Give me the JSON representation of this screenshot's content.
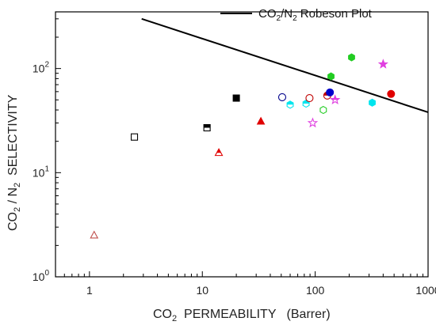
{
  "chart_data": {
    "type": "scatter",
    "x_scale": "log",
    "y_scale": "log",
    "xlim": [
      0.5,
      1000
    ],
    "ylim": [
      1,
      350
    ],
    "x_ticks": [
      {
        "value": 1,
        "label": "1"
      },
      {
        "value": 10,
        "label": "10"
      },
      {
        "value": 100,
        "label": "100"
      },
      {
        "value": 1000,
        "label": "1000"
      }
    ],
    "y_ticks": [
      {
        "value": 1,
        "base": "10",
        "exp": "0"
      },
      {
        "value": 10,
        "base": "10",
        "exp": "1"
      },
      {
        "value": 100,
        "base": "10",
        "exp": "2"
      }
    ],
    "xlabel": {
      "p1": "CO",
      "sub": "2",
      "p2": "  PERMEABILITY   (Barrer)"
    },
    "ylabel": {
      "p1": "CO",
      "sub1": "2",
      "p2": " / N",
      "sub2": "2",
      "p3": "  SELECTIVITY"
    },
    "legend": {
      "position": "top-right",
      "label": {
        "p1": "CO",
        "sub1": "2",
        "p2": "/N",
        "sub2": "2",
        "p3": " Robeson Plot"
      }
    },
    "line": {
      "name": "CO2/N2 Robeson Plot",
      "color": "#000000",
      "points": [
        [
          2.9,
          300
        ],
        [
          1000,
          38
        ]
      ]
    },
    "points": [
      {
        "x": 1.1,
        "y": 2.5,
        "marker": "triangle",
        "fill": "open",
        "color": "#c0504d"
      },
      {
        "x": 2.5,
        "y": 22,
        "marker": "square",
        "fill": "open",
        "color": "#000000"
      },
      {
        "x": 11,
        "y": 27,
        "marker": "square",
        "fill": "half",
        "color": "#000000"
      },
      {
        "x": 20,
        "y": 52,
        "marker": "square",
        "fill": "solid",
        "color": "#000000"
      },
      {
        "x": 14,
        "y": 15.5,
        "marker": "triangle",
        "fill": "half",
        "color": "#e00000"
      },
      {
        "x": 33,
        "y": 31,
        "marker": "triangle",
        "fill": "solid",
        "color": "#e00000"
      },
      {
        "x": 51,
        "y": 53,
        "marker": "circle",
        "fill": "open",
        "color": "#00008b"
      },
      {
        "x": 60,
        "y": 45,
        "marker": "hexagon",
        "fill": "half",
        "color": "#00e5ee"
      },
      {
        "x": 83,
        "y": 46,
        "marker": "hexagon",
        "fill": "half",
        "color": "#00e5ee"
      },
      {
        "x": 89,
        "y": 52,
        "marker": "circle",
        "fill": "open",
        "color": "#c00000"
      },
      {
        "x": 95,
        "y": 30,
        "marker": "star",
        "fill": "open",
        "color": "#e040e0"
      },
      {
        "x": 118,
        "y": 40,
        "marker": "hexagon",
        "fill": "open",
        "color": "#22cc22"
      },
      {
        "x": 128,
        "y": 55,
        "marker": "circle",
        "fill": "half",
        "color": "#c00000"
      },
      {
        "x": 135,
        "y": 59,
        "marker": "circle",
        "fill": "solid",
        "color": "#0000cc"
      },
      {
        "x": 138,
        "y": 84,
        "marker": "hexagon",
        "fill": "solid",
        "color": "#22cc22"
      },
      {
        "x": 150,
        "y": 50,
        "marker": "star",
        "fill": "half",
        "color": "#e040e0"
      },
      {
        "x": 210,
        "y": 128,
        "marker": "hexagon",
        "fill": "solid",
        "color": "#22cc22"
      },
      {
        "x": 320,
        "y": 47,
        "marker": "hexagon",
        "fill": "solid",
        "color": "#00e5ee"
      },
      {
        "x": 400,
        "y": 110,
        "marker": "star",
        "fill": "solid",
        "color": "#e040e0"
      },
      {
        "x": 470,
        "y": 57,
        "marker": "circle",
        "fill": "solid",
        "color": "#e00000"
      }
    ]
  }
}
